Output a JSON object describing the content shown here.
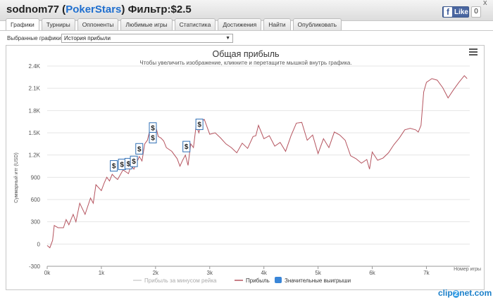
{
  "window": {
    "player": "sodnom77",
    "site": "PokerStars",
    "filter": "Фильтр:$2.5",
    "like_label": "Like",
    "like_count": "0",
    "close": "x"
  },
  "tabs": [
    "Графики",
    "Турниры",
    "Оппоненты",
    "Любимые игры",
    "Статистика",
    "Достижения",
    "Найти",
    "Опубликовать"
  ],
  "selector": {
    "label": "Выбранные графики:",
    "value": "История прибыли"
  },
  "chart_data": {
    "type": "line",
    "title": "Общая прибыль",
    "subtitle": "Чтобы увеличить изображение, кликните и перетащите мышкой внутрь графика.",
    "ylabel": "Суммарный итг (USD)",
    "xlabel": "Номер игры",
    "ylim": [
      -300,
      2400
    ],
    "xlim": [
      0,
      7800
    ],
    "x_ticks": [
      "0k",
      "1k",
      "2k",
      "3k",
      "4k",
      "5k",
      "6k",
      "7k"
    ],
    "y_ticks": [
      "-300",
      "0",
      "300",
      "600",
      "900",
      "1.2K",
      "1.5K",
      "1.8K",
      "2.1K",
      "2.4K"
    ],
    "legend": [
      "Прибыль за минусом рейка",
      "Прибыль",
      "Значительные выигрыши"
    ],
    "colors": {
      "line": "#b5545f",
      "rake_line": "#d0d0d0",
      "flag_border": "#2f6fb5",
      "flag_legend": "#3a86d8"
    },
    "series": [
      {
        "name": "Прибыль",
        "x": [
          0,
          50,
          100,
          130,
          200,
          300,
          350,
          400,
          480,
          530,
          600,
          700,
          800,
          850,
          900,
          1000,
          1050,
          1100,
          1150,
          1200,
          1250,
          1300,
          1400,
          1500,
          1550,
          1600,
          1700,
          1750,
          1800,
          1850,
          1900,
          1950,
          2000,
          2050,
          2100,
          2150,
          2200,
          2300,
          2400,
          2450,
          2500,
          2550,
          2600,
          2650,
          2700,
          2750,
          2800,
          2850,
          2900,
          3000,
          3100,
          3200,
          3300,
          3400,
          3500,
          3600,
          3700,
          3800,
          3850,
          3900,
          4000,
          4100,
          4200,
          4300,
          4400,
          4500,
          4600,
          4700,
          4800,
          4900,
          5000,
          5100,
          5200,
          5300,
          5400,
          5500,
          5600,
          5700,
          5800,
          5900,
          5950,
          6000,
          6100,
          6200,
          6300,
          6400,
          6500,
          6600,
          6700,
          6800,
          6850,
          6900,
          6950,
          7000,
          7100,
          7200,
          7300,
          7400,
          7500,
          7600,
          7700,
          7750
        ],
        "y": [
          -20,
          -50,
          50,
          250,
          220,
          220,
          330,
          260,
          400,
          300,
          550,
          400,
          620,
          550,
          800,
          720,
          820,
          900,
          850,
          940,
          900,
          870,
          1000,
          950,
          1060,
          1010,
          1180,
          1120,
          1350,
          1400,
          1550,
          1450,
          1600,
          1450,
          1430,
          1390,
          1300,
          1250,
          1150,
          1050,
          1130,
          1200,
          1060,
          1350,
          1300,
          1600,
          1500,
          1650,
          1680,
          1480,
          1500,
          1430,
          1350,
          1300,
          1230,
          1360,
          1290,
          1450,
          1460,
          1600,
          1420,
          1460,
          1320,
          1370,
          1250,
          1460,
          1630,
          1640,
          1400,
          1470,
          1220,
          1420,
          1300,
          1510,
          1470,
          1400,
          1190,
          1150,
          1090,
          1140,
          1010,
          1240,
          1130,
          1160,
          1230,
          1340,
          1430,
          1540,
          1560,
          1540,
          1510,
          1600,
          2050,
          2180,
          2230,
          2210,
          2110,
          1970,
          2080,
          2180,
          2270,
          2230
        ]
      }
    ],
    "flags": [
      {
        "x": 1230,
        "y": 1040,
        "label": "$"
      },
      {
        "x": 1380,
        "y": 1060,
        "label": "$"
      },
      {
        "x": 1500,
        "y": 1070,
        "label": "$"
      },
      {
        "x": 1600,
        "y": 1100,
        "label": "$"
      },
      {
        "x": 1700,
        "y": 1270,
        "label": "$"
      },
      {
        "x": 1950,
        "y": 1550,
        "label": "$"
      },
      {
        "x": 1950,
        "y": 1420,
        "label": "$"
      },
      {
        "x": 2570,
        "y": 1300,
        "label": "$"
      },
      {
        "x": 2810,
        "y": 1600,
        "label": "$"
      }
    ]
  },
  "watermark": {
    "clip": "clip",
    "two": "2",
    "net": "net.com"
  }
}
